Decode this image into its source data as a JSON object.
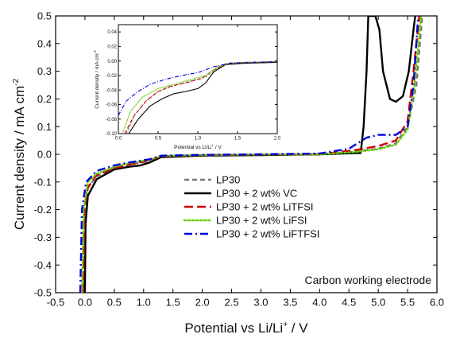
{
  "chart_data": [
    {
      "type": "line",
      "title": "",
      "xlabel": "Potential vs Li/Li",
      "xlabel_sup": "+",
      "xlabel_suffix": " / V",
      "ylabel": "Current density / mA cm",
      "ylabel_sup": "-2",
      "xlim": [
        -0.5,
        6.0
      ],
      "ylim": [
        -0.5,
        0.5
      ],
      "xticks": [
        "-0.5",
        "0.0",
        "0.5",
        "1.0",
        "1.5",
        "2.0",
        "2.5",
        "3.0",
        "3.5",
        "4.0",
        "4.5",
        "5.0",
        "5.5",
        "6.0"
      ],
      "yticks": [
        "-0.5",
        "-0.4",
        "-0.3",
        "-0.2",
        "-0.1",
        "0.0",
        "0.1",
        "0.2",
        "0.3",
        "0.4",
        "0.5"
      ],
      "annotation": "Carbon working electrode",
      "legend_position": "center-right",
      "series": [
        {
          "name": "LP30",
          "color": "#777777",
          "dash": "dash",
          "points": [
            [
              -0.02,
              -0.5
            ],
            [
              0.0,
              -0.2
            ],
            [
              0.05,
              -0.12
            ],
            [
              0.2,
              -0.08
            ],
            [
              0.5,
              -0.05
            ],
            [
              0.8,
              -0.035
            ],
            [
              1.1,
              -0.025
            ],
            [
              1.3,
              -0.008
            ],
            [
              2.0,
              -0.004
            ],
            [
              3.0,
              -0.002
            ],
            [
              4.0,
              0.0
            ],
            [
              4.6,
              0.01
            ],
            [
              5.0,
              0.02
            ],
            [
              5.3,
              0.04
            ],
            [
              5.5,
              0.1
            ],
            [
              5.65,
              0.25
            ],
            [
              5.75,
              0.5
            ]
          ]
        },
        {
          "name": "LP30 + 2 wt% VC",
          "color": "#000000",
          "dash": "solid",
          "points": [
            [
              0.0,
              -0.5
            ],
            [
              0.01,
              -0.25
            ],
            [
              0.05,
              -0.15
            ],
            [
              0.2,
              -0.09
            ],
            [
              0.5,
              -0.055
            ],
            [
              0.75,
              -0.045
            ],
            [
              0.95,
              -0.04
            ],
            [
              1.1,
              -0.03
            ],
            [
              1.3,
              -0.01
            ],
            [
              2.0,
              -0.005
            ],
            [
              3.0,
              -0.003
            ],
            [
              4.0,
              0.0
            ],
            [
              4.7,
              0.005
            ],
            [
              4.75,
              0.1
            ],
            [
              4.8,
              0.3
            ],
            [
              4.83,
              0.5
            ],
            [
              4.9,
              0.5
            ],
            [
              4.95,
              0.5
            ],
            [
              5.02,
              0.45
            ],
            [
              5.08,
              0.3
            ],
            [
              5.2,
              0.2
            ],
            [
              5.3,
              0.19
            ],
            [
              5.42,
              0.21
            ],
            [
              5.52,
              0.3
            ],
            [
              5.6,
              0.45
            ],
            [
              5.63,
              0.5
            ]
          ]
        },
        {
          "name": "LP30 + 2 wt% LiTFSI",
          "color": "#cc0000",
          "dash": "longdash",
          "points": [
            [
              -0.03,
              -0.5
            ],
            [
              -0.01,
              -0.2
            ],
            [
              0.05,
              -0.12
            ],
            [
              0.2,
              -0.075
            ],
            [
              0.5,
              -0.05
            ],
            [
              0.8,
              -0.035
            ],
            [
              1.1,
              -0.022
            ],
            [
              1.3,
              -0.007
            ],
            [
              2.0,
              -0.003
            ],
            [
              3.0,
              -0.001
            ],
            [
              4.0,
              0.0
            ],
            [
              4.6,
              0.015
            ],
            [
              5.0,
              0.03
            ],
            [
              5.3,
              0.05
            ],
            [
              5.5,
              0.12
            ],
            [
              5.6,
              0.3
            ],
            [
              5.7,
              0.5
            ]
          ]
        },
        {
          "name": "LP30 + 2 wt% LiFSI",
          "color": "#66cc00",
          "dash": "dot",
          "points": [
            [
              -0.05,
              -0.5
            ],
            [
              -0.02,
              -0.2
            ],
            [
              0.05,
              -0.1
            ],
            [
              0.2,
              -0.07
            ],
            [
              0.5,
              -0.045
            ],
            [
              0.8,
              -0.03
            ],
            [
              1.1,
              -0.02
            ],
            [
              1.3,
              -0.006
            ],
            [
              2.0,
              -0.003
            ],
            [
              3.0,
              -0.001
            ],
            [
              4.0,
              0.0
            ],
            [
              4.6,
              0.008
            ],
            [
              5.0,
              0.018
            ],
            [
              5.3,
              0.035
            ],
            [
              5.5,
              0.09
            ],
            [
              5.62,
              0.25
            ],
            [
              5.73,
              0.5
            ]
          ]
        },
        {
          "name": "LP30 + 2 wt% LiFTFSI",
          "color": "#0000dd",
          "dash": "dashdot",
          "points": [
            [
              -0.08,
              -0.5
            ],
            [
              -0.05,
              -0.2
            ],
            [
              0.02,
              -0.1
            ],
            [
              0.2,
              -0.06
            ],
            [
              0.5,
              -0.04
            ],
            [
              0.8,
              -0.028
            ],
            [
              1.1,
              -0.018
            ],
            [
              1.3,
              -0.005
            ],
            [
              2.0,
              -0.002
            ],
            [
              3.0,
              0.0
            ],
            [
              4.0,
              0.003
            ],
            [
              4.5,
              0.02
            ],
            [
              4.8,
              0.06
            ],
            [
              5.0,
              0.07
            ],
            [
              5.3,
              0.07
            ],
            [
              5.5,
              0.1
            ],
            [
              5.6,
              0.25
            ],
            [
              5.68,
              0.5
            ]
          ]
        }
      ]
    },
    {
      "type": "line",
      "title": "",
      "xlabel": "Potential vs Li/Li",
      "xlabel_sup": "+",
      "xlabel_suffix": " / V",
      "ylabel": "Current density / mA cm",
      "ylabel_sup": "-2",
      "xlim": [
        0.0,
        2.0
      ],
      "ylim": [
        -0.1,
        0.05
      ],
      "xticks": [
        "0.0",
        "0.5",
        "1.0",
        "1.5",
        "2.0"
      ],
      "yticks": [
        "-0.10",
        "-0.08",
        "-0.06",
        "-0.04",
        "-0.02",
        "0.00",
        "0.02",
        "0.04"
      ],
      "series": [
        {
          "name": "LP30",
          "color": "#777777",
          "dash": "dash",
          "points": [
            [
              0.1,
              -0.1
            ],
            [
              0.2,
              -0.075
            ],
            [
              0.35,
              -0.055
            ],
            [
              0.5,
              -0.042
            ],
            [
              0.7,
              -0.034
            ],
            [
              0.9,
              -0.028
            ],
            [
              1.1,
              -0.022
            ],
            [
              1.25,
              -0.01
            ],
            [
              1.4,
              -0.003
            ],
            [
              1.6,
              -0.002
            ],
            [
              2.0,
              -0.001
            ]
          ]
        },
        {
          "name": "LP30 + 2 wt% VC",
          "color": "#000000",
          "dash": "solid",
          "points": [
            [
              0.13,
              -0.1
            ],
            [
              0.25,
              -0.08
            ],
            [
              0.4,
              -0.062
            ],
            [
              0.55,
              -0.052
            ],
            [
              0.7,
              -0.045
            ],
            [
              0.85,
              -0.042
            ],
            [
              1.0,
              -0.038
            ],
            [
              1.1,
              -0.03
            ],
            [
              1.2,
              -0.015
            ],
            [
              1.35,
              -0.005
            ],
            [
              1.6,
              -0.003
            ],
            [
              2.0,
              -0.002
            ]
          ]
        },
        {
          "name": "LP30 + 2 wt% LiTFSI",
          "color": "#cc0000",
          "dash": "longdash",
          "points": [
            [
              0.08,
              -0.1
            ],
            [
              0.2,
              -0.075
            ],
            [
              0.35,
              -0.055
            ],
            [
              0.5,
              -0.042
            ],
            [
              0.65,
              -0.035
            ],
            [
              0.85,
              -0.03
            ],
            [
              1.05,
              -0.024
            ],
            [
              1.2,
              -0.012
            ],
            [
              1.35,
              -0.004
            ],
            [
              1.6,
              -0.002
            ],
            [
              2.0,
              -0.001
            ]
          ]
        },
        {
          "name": "LP30 + 2 wt% LiFSI",
          "color": "#66cc00",
          "dash": "dot",
          "points": [
            [
              0.05,
              -0.1
            ],
            [
              0.15,
              -0.07
            ],
            [
              0.3,
              -0.05
            ],
            [
              0.5,
              -0.038
            ],
            [
              0.7,
              -0.032
            ],
            [
              0.9,
              -0.026
            ],
            [
              1.1,
              -0.02
            ],
            [
              1.25,
              -0.008
            ],
            [
              1.4,
              -0.003
            ],
            [
              1.6,
              -0.002
            ],
            [
              2.0,
              -0.001
            ]
          ]
        },
        {
          "name": "LP30 + 2 wt% LiFTFSI",
          "color": "#0000dd",
          "dash": "dashdot",
          "points": [
            [
              0.0,
              -0.075
            ],
            [
              0.1,
              -0.055
            ],
            [
              0.25,
              -0.042
            ],
            [
              0.4,
              -0.032
            ],
            [
              0.6,
              -0.025
            ],
            [
              0.8,
              -0.02
            ],
            [
              1.0,
              -0.016
            ],
            [
              1.2,
              -0.008
            ],
            [
              1.4,
              -0.003
            ],
            [
              1.6,
              -0.002
            ],
            [
              2.0,
              -0.001
            ]
          ]
        }
      ]
    }
  ]
}
